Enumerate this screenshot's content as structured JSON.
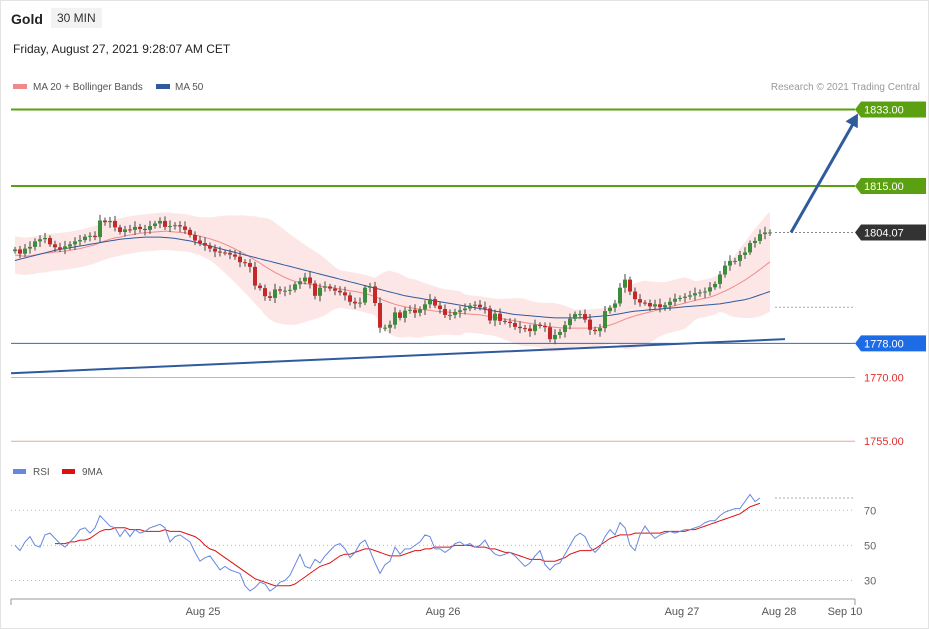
{
  "header": {
    "instrument": "Gold",
    "timeframe": "30 MIN",
    "datetime": "Friday, August 27, 2021 9:28:07 AM CET",
    "copyright": "Research © 2021 Trading Central"
  },
  "colors": {
    "ma20": "#f08a8a",
    "ma50": "#2f5b9c",
    "resistance": "#5aa012",
    "support": "#1e6be6",
    "red_level": "#e03030",
    "current": "#333333",
    "rsi": "#6688dd",
    "rsi_ma": "#dd1111",
    "bull": "#3c8c3c",
    "bear": "#c62828"
  },
  "chart_data": [
    {
      "type": "candlestick",
      "legend": [
        {
          "name": "MA 20 + Bollinger Bands",
          "color": "#f08a8a"
        },
        {
          "name": "MA 50",
          "color": "#2f5b9c"
        }
      ],
      "ylim": [
        1752,
        1835
      ],
      "levels": [
        {
          "value": 1833.0,
          "label": "1833.00",
          "kind": "resistance"
        },
        {
          "value": 1815.0,
          "label": "1815.00",
          "kind": "resistance"
        },
        {
          "value": 1804.07,
          "label": "1804.07",
          "kind": "current"
        },
        {
          "value": 1778.0,
          "label": "1778.00",
          "kind": "support"
        },
        {
          "value": 1770.0,
          "label": "1770.00",
          "kind": "red"
        },
        {
          "value": 1755.0,
          "label": "1755.00",
          "kind": "red"
        }
      ],
      "x_ticks": [
        "Aug 25",
        "Aug 26",
        "Aug 27",
        "Aug 28",
        "Sep 10"
      ],
      "closes": [
        1800.1,
        1799.1,
        1800.3,
        1800.7,
        1802.0,
        1802.5,
        1802.8,
        1801.3,
        1800.6,
        1800.2,
        1800.8,
        1801.3,
        1802.0,
        1802.3,
        1803.1,
        1803.3,
        1803.0,
        1806.9,
        1806.5,
        1806.8,
        1805.3,
        1804.2,
        1804.8,
        1804.7,
        1805.4,
        1804.9,
        1804.7,
        1805.6,
        1806.2,
        1806.8,
        1805.4,
        1805.6,
        1805.8,
        1805.5,
        1804.7,
        1803.5,
        1802.2,
        1801.6,
        1801.0,
        1800.3,
        1799.6,
        1799.4,
        1799.3,
        1798.9,
        1798.4,
        1797.1,
        1796.9,
        1796.0,
        1791.6,
        1791.0,
        1789.1,
        1788.7,
        1790.7,
        1790.4,
        1790.4,
        1790.6,
        1791.9,
        1792.6,
        1793.5,
        1792.1,
        1789.2,
        1791.1,
        1791.4,
        1790.9,
        1790.4,
        1790.0,
        1789.3,
        1787.8,
        1787.4,
        1787.6,
        1791.1,
        1791.4,
        1787.5,
        1781.7,
        1781.7,
        1782.4,
        1785.3,
        1784.0,
        1785.7,
        1785.9,
        1785.2,
        1786.0,
        1787.2,
        1788.4,
        1786.9,
        1786.1,
        1784.7,
        1784.7,
        1785.4,
        1785.8,
        1786.2,
        1786.9,
        1787.1,
        1786.5,
        1786.2,
        1783.4,
        1785.0,
        1783.3,
        1783.1,
        1782.8,
        1781.9,
        1781.6,
        1781.5,
        1780.9,
        1782.4,
        1782.1,
        1781.8,
        1779.0,
        1780.0,
        1780.7,
        1782.3,
        1783.8,
        1784.9,
        1784.9,
        1783.6,
        1781.2,
        1780.9,
        1781.6,
        1785.6,
        1786.4,
        1787.4,
        1791.1,
        1793.0,
        1790.2,
        1788.4,
        1787.6,
        1787.5,
        1786.7,
        1787.2,
        1786.5,
        1787.0,
        1787.8,
        1788.5,
        1788.7,
        1789.0,
        1789.3,
        1789.8,
        1790.0,
        1790.2,
        1791.2,
        1792.0,
        1794.2,
        1796.3,
        1797.4,
        1797.4,
        1798.8,
        1799.4,
        1801.6,
        1802.1,
        1803.7,
        1804.1,
        1804.1
      ],
      "ma20": [
        1798.8,
        1798.6,
        1798.5,
        1798.6,
        1798.8,
        1799.0,
        1799.2,
        1799.3,
        1799.5,
        1799.6,
        1799.7,
        1799.9,
        1800.1,
        1800.3,
        1800.6,
        1800.9,
        1801.2,
        1801.7,
        1802.1,
        1802.5,
        1802.8,
        1803.0,
        1803.3,
        1803.5,
        1803.7,
        1803.9,
        1804.0,
        1804.1,
        1804.2,
        1804.3,
        1804.4,
        1804.3,
        1804.2,
        1804.1,
        1804.0,
        1803.8,
        1803.5,
        1803.2,
        1802.9,
        1802.6,
        1802.2,
        1801.8,
        1801.3,
        1800.8,
        1800.2,
        1799.6,
        1799.0,
        1798.3,
        1797.6,
        1796.9,
        1796.1,
        1795.4,
        1794.7,
        1794.1,
        1793.5,
        1793.0,
        1792.6,
        1792.3,
        1792.1,
        1791.9,
        1791.7,
        1791.5,
        1791.3,
        1791.2,
        1791.0,
        1790.8,
        1790.6,
        1790.4,
        1790.2,
        1790.0,
        1789.7,
        1789.4,
        1789.0,
        1788.5,
        1788.0,
        1787.6,
        1787.2,
        1786.9,
        1786.6,
        1786.4,
        1786.2,
        1786.0,
        1785.9,
        1785.8,
        1785.6,
        1785.5,
        1785.4,
        1785.3,
        1785.2,
        1785.1,
        1785.0,
        1784.9,
        1784.8,
        1784.7,
        1784.5,
        1784.3,
        1784.1,
        1783.9,
        1783.7,
        1783.5,
        1783.3,
        1783.1,
        1782.9,
        1782.7,
        1782.5,
        1782.3,
        1782.1,
        1781.9,
        1781.8,
        1781.7,
        1781.6,
        1781.6,
        1781.6,
        1781.6,
        1781.6,
        1781.6,
        1781.7,
        1781.8,
        1782.0,
        1782.3,
        1782.7,
        1783.2,
        1783.7,
        1784.1,
        1784.5,
        1784.8,
        1785.1,
        1785.4,
        1785.7,
        1786.0,
        1786.3,
        1786.6,
        1786.9,
        1787.2,
        1787.5,
        1787.8,
        1788.1,
        1788.4,
        1788.6,
        1788.9,
        1789.3,
        1789.8,
        1790.3,
        1790.9,
        1791.5,
        1792.2,
        1792.9,
        1793.7,
        1794.5,
        1795.4,
        1796.3,
        1797.2
      ],
      "ma50": [
        1797.5,
        1797.8,
        1798.1,
        1798.4,
        1798.7,
        1799.0,
        1799.3,
        1799.6,
        1799.9,
        1800.1,
        1800.3,
        1800.5,
        1800.7,
        1800.9,
        1801.1,
        1801.3,
        1801.5,
        1801.7,
        1801.9,
        1802.1,
        1802.3,
        1802.5,
        1802.6,
        1802.7,
        1802.8,
        1802.9,
        1803.0,
        1803.0,
        1803.0,
        1803.0,
        1802.9,
        1802.8,
        1802.7,
        1802.5,
        1802.3,
        1802.1,
        1801.8,
        1801.5,
        1801.2,
        1800.9,
        1800.6,
        1800.3,
        1800.0,
        1799.7,
        1799.4,
        1799.1,
        1798.8,
        1798.5,
        1798.2,
        1797.9,
        1797.6,
        1797.3,
        1797.0,
        1796.7,
        1796.4,
        1796.1,
        1795.8,
        1795.5,
        1795.2,
        1794.9,
        1794.6,
        1794.3,
        1794.0,
        1793.7,
        1793.4,
        1793.1,
        1792.8,
        1792.5,
        1792.2,
        1791.9,
        1791.6,
        1791.3,
        1791.0,
        1790.7,
        1790.4,
        1790.1,
        1789.8,
        1789.5,
        1789.2,
        1789.0,
        1788.8,
        1788.6,
        1788.4,
        1788.2,
        1788.0,
        1787.8,
        1787.6,
        1787.4,
        1787.2,
        1787.0,
        1786.8,
        1786.6,
        1786.4,
        1786.2,
        1786.0,
        1785.8,
        1785.6,
        1785.4,
        1785.2,
        1785.0,
        1784.8,
        1784.7,
        1784.6,
        1784.5,
        1784.4,
        1784.3,
        1784.2,
        1784.1,
        1784.0,
        1784.0,
        1784.0,
        1784.0,
        1784.0,
        1784.0,
        1784.1,
        1784.2,
        1784.3,
        1784.4,
        1784.5,
        1784.6,
        1784.8,
        1785.0,
        1785.2,
        1785.4,
        1785.6,
        1785.7,
        1785.8,
        1785.9,
        1786.0,
        1786.1,
        1786.2,
        1786.3,
        1786.4,
        1786.5,
        1786.6,
        1786.7,
        1786.8,
        1786.9,
        1787.0,
        1787.1,
        1787.2,
        1787.3,
        1787.5,
        1787.7,
        1787.9,
        1788.1,
        1788.3,
        1788.6,
        1789.0,
        1789.4,
        1789.8,
        1790.2
      ],
      "trendline": [
        {
          "x": 0,
          "y": 1771.0
        },
        {
          "x": 154,
          "y": 1779.0
        }
      ],
      "projection": [
        {
          "x": 154,
          "y": 1804.07
        },
        {
          "x": 170,
          "y": 1833.0
        }
      ]
    },
    {
      "type": "line",
      "legend": [
        {
          "name": "RSI",
          "color": "#6688dd"
        },
        {
          "name": "9MA",
          "color": "#dd1111"
        }
      ],
      "ylim": [
        20,
        85
      ],
      "y_ticks": [
        70,
        50,
        30
      ],
      "series": [
        {
          "name": "RSI",
          "values": [
            50,
            47,
            52,
            55,
            50,
            49,
            56,
            57,
            54,
            51,
            49,
            52,
            55,
            59,
            60,
            57,
            60,
            67,
            64,
            61,
            60,
            55,
            59,
            55,
            59,
            57,
            58,
            60,
            61,
            62,
            60,
            52,
            55,
            56,
            54,
            52,
            46,
            41,
            43,
            44,
            40,
            36,
            38,
            36,
            35,
            34,
            27,
            24,
            26,
            29,
            28,
            24,
            26,
            29,
            30,
            33,
            39,
            45,
            38,
            37,
            42,
            40,
            44,
            47,
            50,
            51,
            48,
            43,
            46,
            51,
            53,
            47,
            40,
            34,
            39,
            41,
            49,
            45,
            48,
            48,
            50,
            52,
            56,
            55,
            48,
            48,
            46,
            48,
            51,
            52,
            50,
            51,
            49,
            50,
            53,
            48,
            45,
            44,
            45,
            46,
            44,
            41,
            38,
            40,
            44,
            47,
            39,
            36,
            39,
            40,
            45,
            50,
            55,
            57,
            55,
            49,
            46,
            49,
            55,
            59,
            56,
            63,
            60,
            50,
            47,
            56,
            61,
            57,
            54,
            56,
            57,
            58,
            57,
            58,
            59,
            59,
            60,
            61,
            63,
            64,
            64,
            67,
            69,
            70,
            71,
            71,
            75,
            79,
            75,
            77
          ]
        },
        {
          "name": "9MA",
          "values": [
            null,
            null,
            null,
            null,
            null,
            null,
            null,
            null,
            51,
            51,
            51,
            52,
            52,
            53,
            53,
            54,
            56,
            58,
            59,
            59,
            60,
            60,
            60,
            59,
            59,
            59,
            58,
            58,
            58,
            58,
            59,
            58,
            58,
            58,
            57,
            56,
            55,
            53,
            50,
            48,
            47,
            45,
            43,
            41,
            39,
            37,
            35,
            33,
            31,
            30,
            29,
            28,
            27,
            27,
            27,
            27,
            28,
            30,
            32,
            34,
            36,
            38,
            39,
            40,
            42,
            44,
            45,
            45,
            46,
            47,
            48,
            48,
            47,
            46,
            45,
            44,
            44,
            44,
            45,
            46,
            47,
            47,
            48,
            48,
            49,
            49,
            49,
            49,
            50,
            50,
            50,
            50,
            49,
            49,
            49,
            48,
            48,
            47,
            46,
            46,
            45,
            44,
            43,
            42,
            42,
            42,
            41,
            41,
            41,
            42,
            43,
            45,
            46,
            47,
            47,
            47,
            48,
            50,
            52,
            54,
            55,
            56,
            56,
            56,
            57,
            57,
            57,
            57,
            57,
            57,
            58,
            58,
            58,
            58,
            58,
            59,
            59,
            60,
            61,
            62,
            63,
            64,
            65,
            66,
            67,
            68,
            70,
            72,
            73,
            74
          ]
        }
      ]
    }
  ]
}
